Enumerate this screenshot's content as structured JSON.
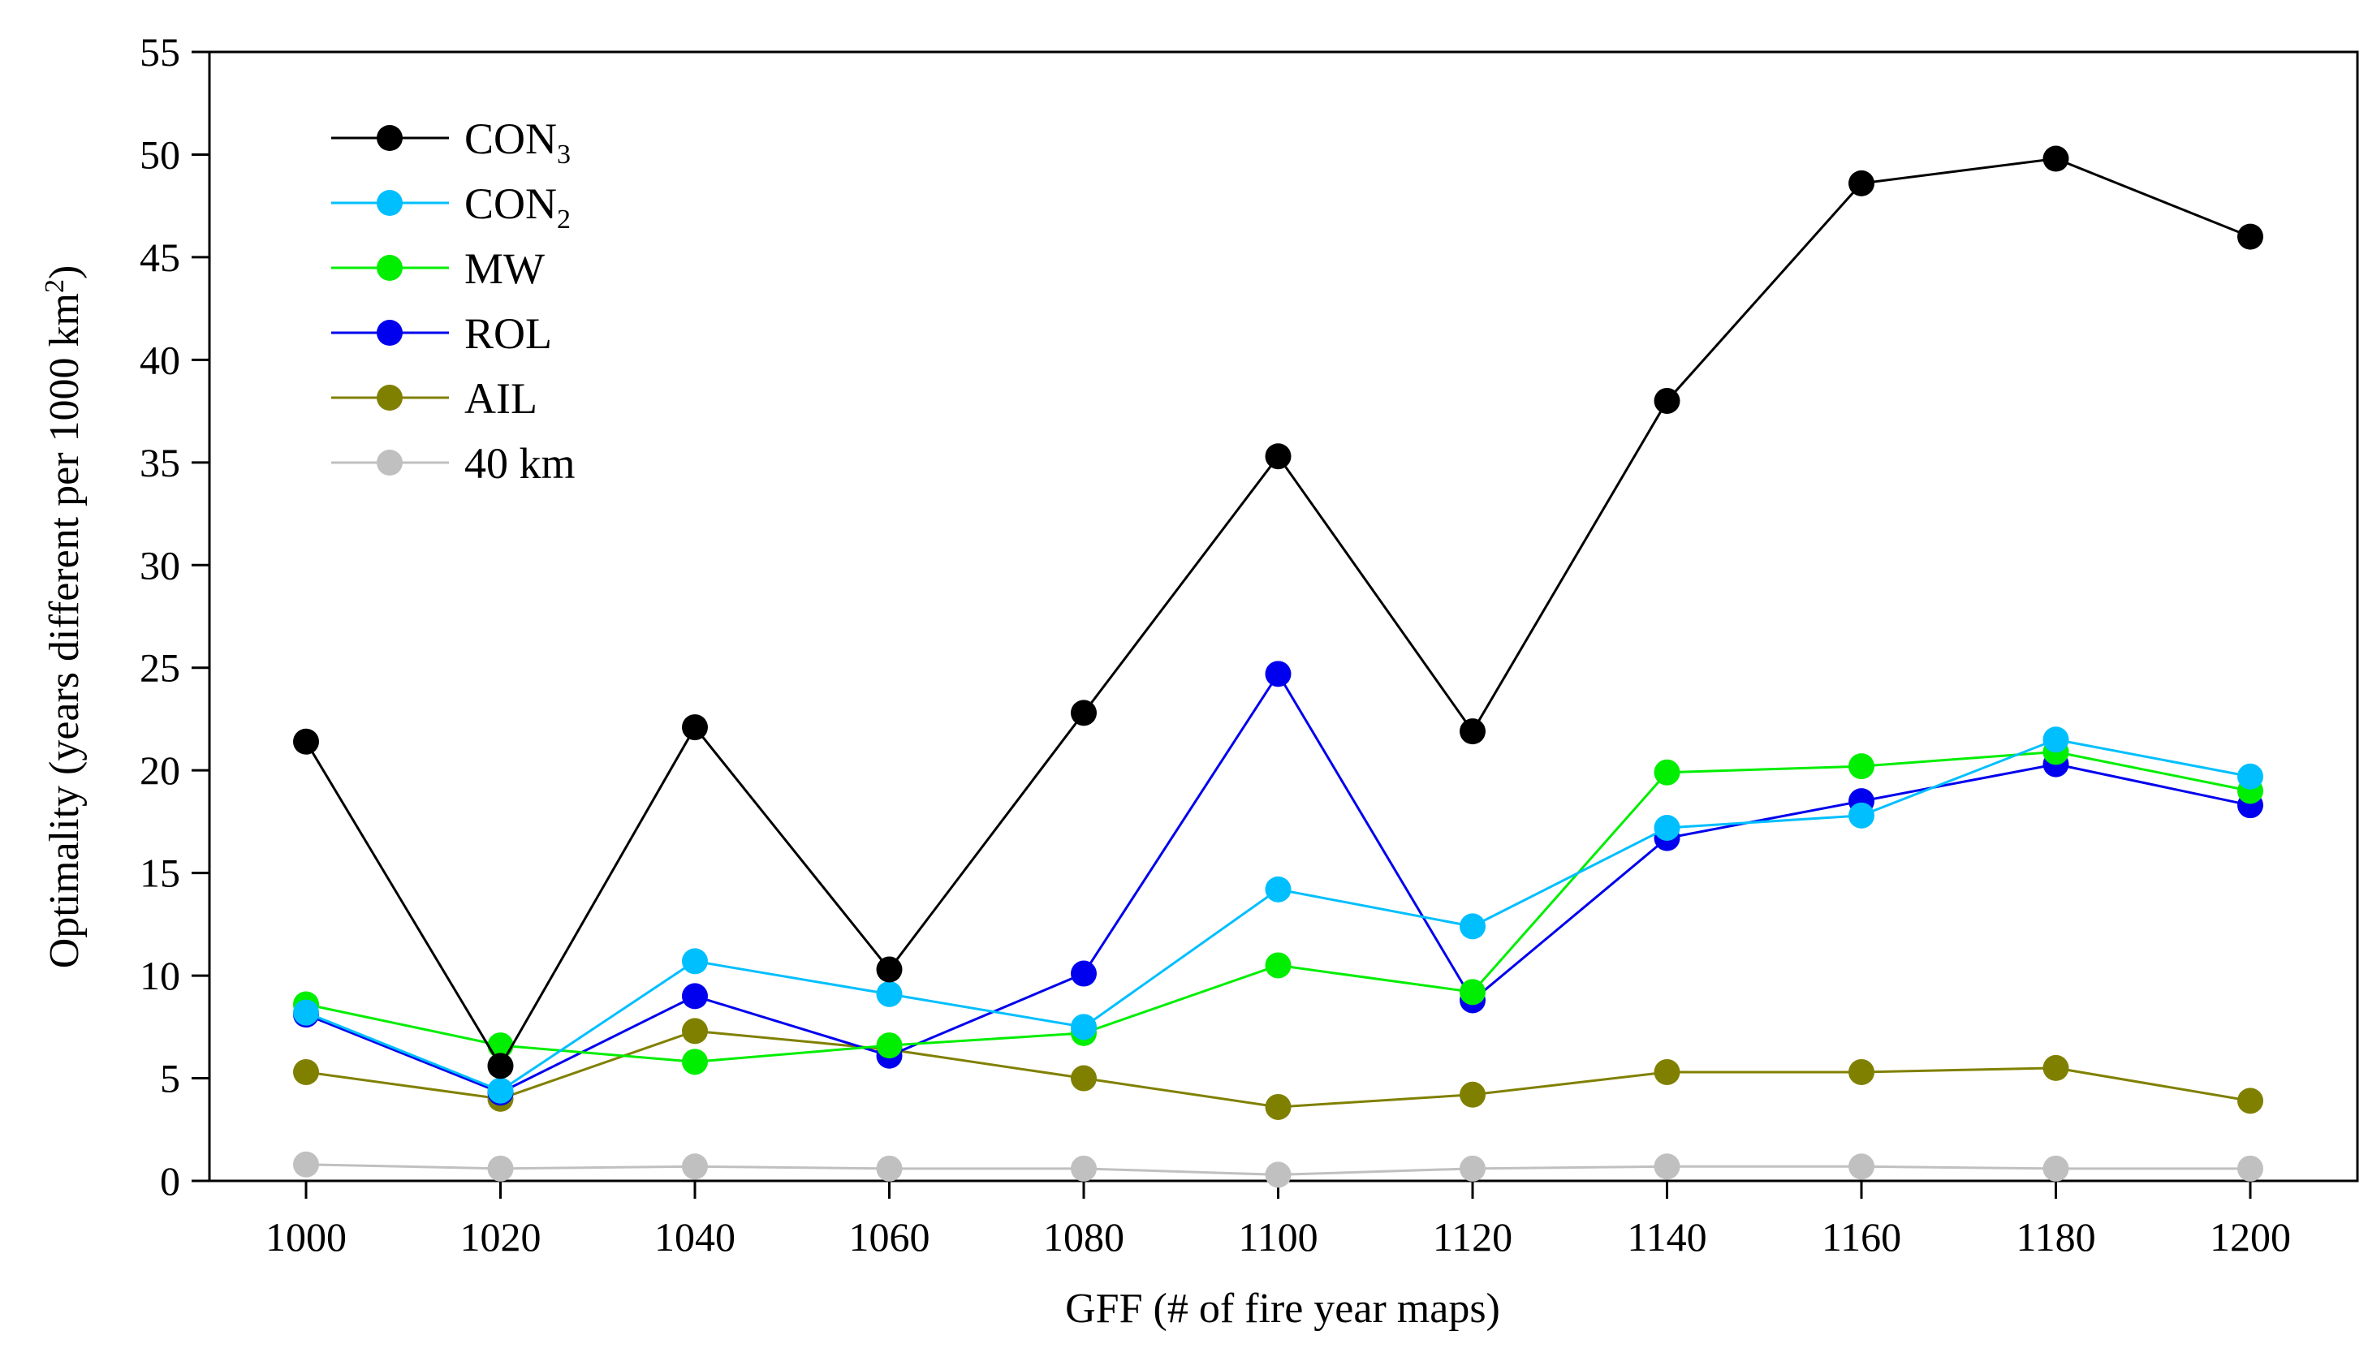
{
  "chart_data": {
    "type": "line",
    "title": "",
    "xlabel": "GFF (# of fire year maps)",
    "ylabel": {
      "main": "Optimality (years different per 1000 km",
      "sup": "2",
      "close": ")"
    },
    "x": [
      1000,
      1020,
      1040,
      1060,
      1080,
      1100,
      1120,
      1140,
      1160,
      1180,
      1200
    ],
    "xticks": [
      "1000",
      "1020",
      "1040",
      "1060",
      "1080",
      "1100",
      "1120",
      "1140",
      "1160",
      "1180",
      "1200"
    ],
    "ylim": [
      0,
      55
    ],
    "yticks": [
      "0",
      "5",
      "10",
      "15",
      "20",
      "25",
      "30",
      "35",
      "40",
      "45",
      "50",
      "55"
    ],
    "legend_position": "top-left",
    "series": [
      {
        "name": "CON",
        "sub": "3",
        "color": "#000000",
        "values": [
          21.4,
          5.6,
          22.1,
          10.3,
          22.8,
          35.3,
          21.9,
          38.0,
          48.6,
          49.8,
          46.0
        ]
      },
      {
        "name": "CON",
        "sub": "2",
        "color": "#00bfff",
        "values": [
          8.2,
          4.4,
          10.7,
          9.1,
          7.5,
          14.2,
          12.4,
          17.2,
          17.8,
          21.5,
          19.7
        ]
      },
      {
        "name": "MW",
        "sub": "",
        "color": "#00ee00",
        "values": [
          8.6,
          6.6,
          5.8,
          6.6,
          7.2,
          10.5,
          9.2,
          19.9,
          20.2,
          20.9,
          19.0
        ]
      },
      {
        "name": "ROL",
        "sub": "",
        "color": "#0000ee",
        "values": [
          8.1,
          4.3,
          9.0,
          6.1,
          10.1,
          24.7,
          8.8,
          16.7,
          18.5,
          20.3,
          18.3
        ]
      },
      {
        "name": "AIL",
        "sub": "",
        "color": "#808000",
        "values": [
          5.3,
          4.0,
          7.3,
          6.4,
          5.0,
          3.6,
          4.2,
          5.3,
          5.3,
          5.5,
          3.9
        ]
      },
      {
        "name": "40 km",
        "sub": "",
        "color": "#c0c0c0",
        "values": [
          0.8,
          0.6,
          0.7,
          0.6,
          0.6,
          0.3,
          0.6,
          0.7,
          0.7,
          0.6,
          0.6
        ]
      }
    ]
  }
}
